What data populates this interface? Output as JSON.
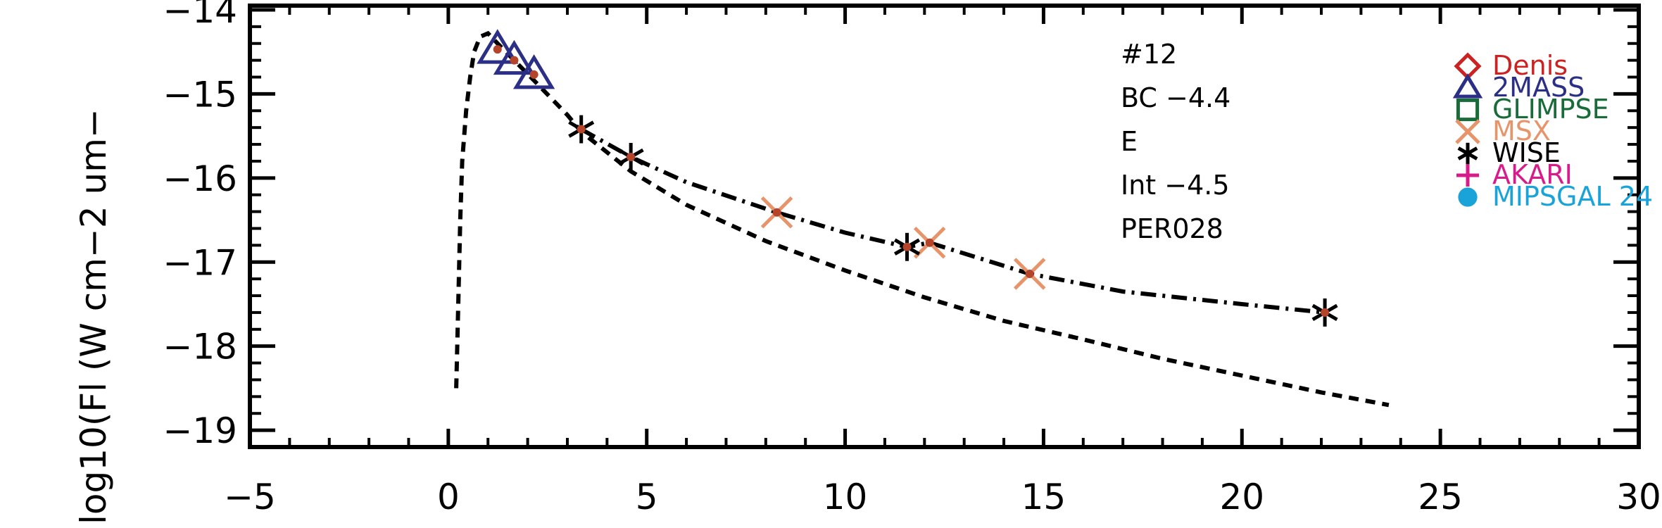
{
  "chart_data": {
    "type": "scatter",
    "title": "",
    "xlabel": "",
    "ylabel": "log10(Fl (W cm−2 um−",
    "xlim": [
      -5,
      30
    ],
    "ylim": [
      -19.2,
      -13.95
    ],
    "x_ticks": [
      -5,
      0,
      5,
      10,
      15,
      20,
      25,
      30
    ],
    "x_tick_labels": [
      "−5",
      "0",
      "5",
      "10",
      "15",
      "20",
      "25",
      "30"
    ],
    "y_ticks": [
      -14,
      -15,
      -16,
      -17,
      -18,
      -19
    ],
    "y_tick_labels": [
      "−14",
      "−15",
      "−16",
      "−17",
      "−18",
      "−19"
    ],
    "grid": false,
    "legend_position": "top-right",
    "annotations": [
      "#12",
      "BC −4.4",
      "E",
      "Int −4.5",
      "PER028"
    ],
    "series": [
      {
        "name": "2MASS",
        "marker": "triangle",
        "color": "#2b2f86",
        "points": [
          [
            1.24,
            -14.47
          ],
          [
            1.66,
            -14.6
          ],
          [
            2.16,
            -14.77
          ]
        ]
      },
      {
        "name": "MSX",
        "marker": "x",
        "color": "#e8946a",
        "points": [
          [
            8.28,
            -16.41
          ],
          [
            12.13,
            -16.77
          ],
          [
            14.65,
            -17.14
          ]
        ]
      },
      {
        "name": "WISE",
        "marker": "asterisk",
        "color": "#000000",
        "points": [
          [
            3.35,
            -15.42
          ],
          [
            4.6,
            -15.75
          ],
          [
            11.56,
            -16.82
          ],
          [
            22.09,
            -17.6
          ]
        ]
      }
    ],
    "legend": [
      {
        "name": "Denis",
        "marker": "diamond",
        "color": "#cc2222"
      },
      {
        "name": "2MASS",
        "marker": "triangle",
        "color": "#2b2f86"
      },
      {
        "name": "GLIMPSE",
        "marker": "square",
        "color": "#1a6b3a"
      },
      {
        "name": "MSX",
        "marker": "x",
        "color": "#e8946a"
      },
      {
        "name": "WISE",
        "marker": "asterisk",
        "color": "#000000"
      },
      {
        "name": "AKARI",
        "marker": "plus",
        "color": "#d81b8a"
      },
      {
        "name": "MIPSGAL 24",
        "marker": "circle",
        "color": "#1aa3d9"
      }
    ],
    "lines": [
      {
        "style": "dashed",
        "points": [
          [
            0.2,
            -18.5
          ],
          [
            0.25,
            -17.5
          ],
          [
            0.3,
            -16.5
          ],
          [
            0.35,
            -15.8
          ],
          [
            0.45,
            -15.2
          ],
          [
            0.55,
            -14.8
          ],
          [
            0.65,
            -14.5
          ],
          [
            0.8,
            -14.32
          ],
          [
            1.0,
            -14.28
          ],
          [
            1.24,
            -14.4
          ],
          [
            1.66,
            -14.6
          ],
          [
            2.16,
            -14.84
          ],
          [
            3.0,
            -15.25
          ],
          [
            3.35,
            -15.45
          ],
          [
            4.6,
            -15.92
          ],
          [
            6,
            -16.32
          ],
          [
            8,
            -16.75
          ],
          [
            10,
            -17.1
          ],
          [
            12,
            -17.42
          ],
          [
            14,
            -17.7
          ],
          [
            16,
            -17.92
          ],
          [
            18,
            -18.15
          ],
          [
            20,
            -18.35
          ],
          [
            22,
            -18.55
          ],
          [
            23.7,
            -18.7
          ]
        ]
      },
      {
        "style": "dashdot",
        "points": [
          [
            3.35,
            -15.42
          ],
          [
            4.6,
            -15.75
          ],
          [
            6.0,
            -16.05
          ],
          [
            8.28,
            -16.41
          ],
          [
            10,
            -16.65
          ],
          [
            11.56,
            -16.82
          ],
          [
            12.13,
            -16.77
          ],
          [
            14.65,
            -17.14
          ],
          [
            17,
            -17.35
          ],
          [
            20,
            -17.5
          ],
          [
            22.09,
            -17.6
          ]
        ]
      }
    ]
  }
}
